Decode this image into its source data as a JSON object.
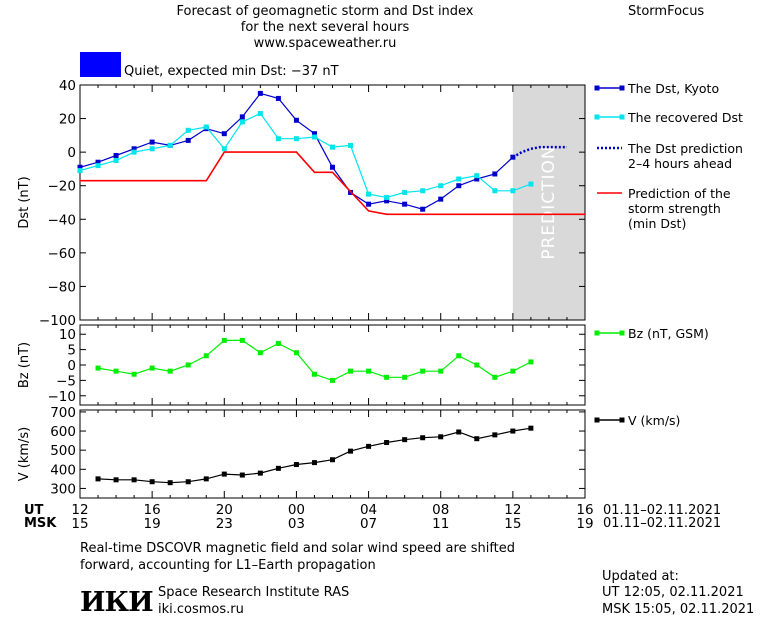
{
  "header": {
    "title_line1": "Forecast of geomagnetic storm and Dst index",
    "title_line2": "for the next several hours",
    "title_line3": "www.spaceweather.ru",
    "brand": "StormFocus",
    "status_label": "Quiet, expected min Dst: −37 nT",
    "status_color": "#0000ff"
  },
  "chart_data": [
    {
      "type": "line",
      "panel": "dst",
      "ylabel": "Dst (nT)",
      "ylim": [
        -100,
        40
      ],
      "yticks": [
        40,
        20,
        0,
        -20,
        -40,
        -60,
        -80,
        -100
      ],
      "xlim": [
        0,
        28
      ],
      "prediction_band": {
        "from": 24,
        "to": 28,
        "label": "PREDICTION",
        "color": "#d9d9d9"
      },
      "series": [
        {
          "name": "The Dst, Kyoto",
          "color": "#0000cc",
          "marker": "square",
          "style": "solid",
          "x": [
            0,
            1,
            2,
            3,
            4,
            5,
            6,
            7,
            8,
            9,
            10,
            11,
            12,
            13,
            14,
            15,
            16,
            17,
            18,
            19,
            20,
            21,
            22,
            23,
            24
          ],
          "y": [
            -9,
            -6,
            -2,
            2,
            6,
            4,
            7,
            14,
            11,
            21,
            35,
            32,
            19,
            11,
            -9,
            -24,
            -31,
            -29,
            -31,
            -34,
            -28,
            -20,
            -16,
            -13,
            -3
          ]
        },
        {
          "name": "The recovered Dst",
          "color": "#00e5ee",
          "marker": "square",
          "style": "solid",
          "x": [
            0,
            1,
            2,
            3,
            4,
            5,
            6,
            7,
            8,
            9,
            10,
            11,
            12,
            13,
            14,
            15,
            16,
            17,
            18,
            19,
            20,
            21,
            22,
            23,
            24,
            25
          ],
          "y": [
            -11,
            -8,
            -5,
            0,
            2,
            4,
            13,
            15,
            2,
            18,
            23,
            8,
            8,
            9,
            3,
            4,
            -25,
            -27,
            -24,
            -23,
            -20,
            -16,
            -14,
            -23,
            -23,
            -19
          ]
        },
        {
          "name": "The Dst prediction\n2–4 hours ahead",
          "color": "#0000cc",
          "style": "dotted",
          "x": [
            24,
            24.5,
            25,
            25.5,
            26,
            26.5,
            27
          ],
          "y": [
            -3,
            0,
            2,
            3,
            3,
            3,
            3
          ]
        },
        {
          "name": "Prediction of the\nstorm strength\n(min Dst)",
          "color": "#ff0000",
          "style": "solid",
          "x": [
            0,
            7,
            8,
            12,
            13,
            14,
            16,
            17,
            28
          ],
          "y": [
            -17,
            -17,
            0,
            0,
            -12,
            -12,
            -35,
            -37,
            -37
          ]
        }
      ]
    },
    {
      "type": "line",
      "panel": "bz",
      "ylabel": "Bz (nT)",
      "ylim": [
        -13,
        13
      ],
      "yticks": [
        10,
        5,
        0,
        -5,
        -10
      ],
      "xlim": [
        0,
        28
      ],
      "series": [
        {
          "name": "Bz (nT, GSM)",
          "color": "#00ee00",
          "marker": "square",
          "style": "solid",
          "x": [
            1,
            2,
            3,
            4,
            5,
            6,
            7,
            8,
            9,
            10,
            11,
            12,
            13,
            14,
            15,
            16,
            17,
            18,
            19,
            20,
            21,
            22,
            23,
            24,
            25
          ],
          "y": [
            -1,
            -2,
            -3,
            -1,
            -2,
            0,
            3,
            8,
            8,
            4,
            7,
            4,
            -3,
            -5,
            -2,
            -2,
            -4,
            -4,
            -2,
            -2,
            3,
            0,
            -4,
            -2,
            1
          ]
        }
      ]
    },
    {
      "type": "line",
      "panel": "v",
      "ylabel": "V (km/s)",
      "ylim": [
        250,
        710
      ],
      "yticks": [
        700,
        600,
        500,
        400,
        300
      ],
      "xlim": [
        0,
        28
      ],
      "series": [
        {
          "name": "V (km/s)",
          "color": "#000000",
          "marker": "square",
          "style": "solid",
          "x": [
            1,
            2,
            3,
            4,
            5,
            6,
            7,
            8,
            9,
            10,
            11,
            12,
            13,
            14,
            15,
            16,
            17,
            18,
            19,
            20,
            21,
            22,
            23,
            24,
            25
          ],
          "y": [
            350,
            345,
            345,
            335,
            330,
            335,
            350,
            375,
            370,
            380,
            405,
            425,
            435,
            450,
            495,
            520,
            540,
            555,
            565,
            570,
            595,
            560,
            580,
            600,
            615
          ]
        }
      ]
    }
  ],
  "x_axis": {
    "ticks_x": [
      0,
      4,
      8,
      12,
      16,
      20,
      24,
      28
    ],
    "ut_label": "UT",
    "msk_label": "MSK",
    "ut_ticks": [
      "12",
      "16",
      "20",
      "00",
      "04",
      "08",
      "12",
      "16"
    ],
    "msk_ticks": [
      "15",
      "19",
      "23",
      "03",
      "07",
      "11",
      "15",
      "19"
    ],
    "ut_range": "01.11–02.11.2021",
    "msk_range": "01.11–02.11.2021"
  },
  "footer": {
    "note_line1": "Real-time DSCOVR magnetic field and solar wind speed are shifted",
    "note_line2": "forward, accounting for L1–Earth propagation",
    "logo_text": "ИКИ",
    "institute": "Space Research Institute RAS",
    "site": "iki.cosmos.ru",
    "updated_label": "Updated at:",
    "updated_ut": "UT   12:05, 02.11.2021",
    "updated_msk": "MSK 15:05, 02.11.2021"
  }
}
